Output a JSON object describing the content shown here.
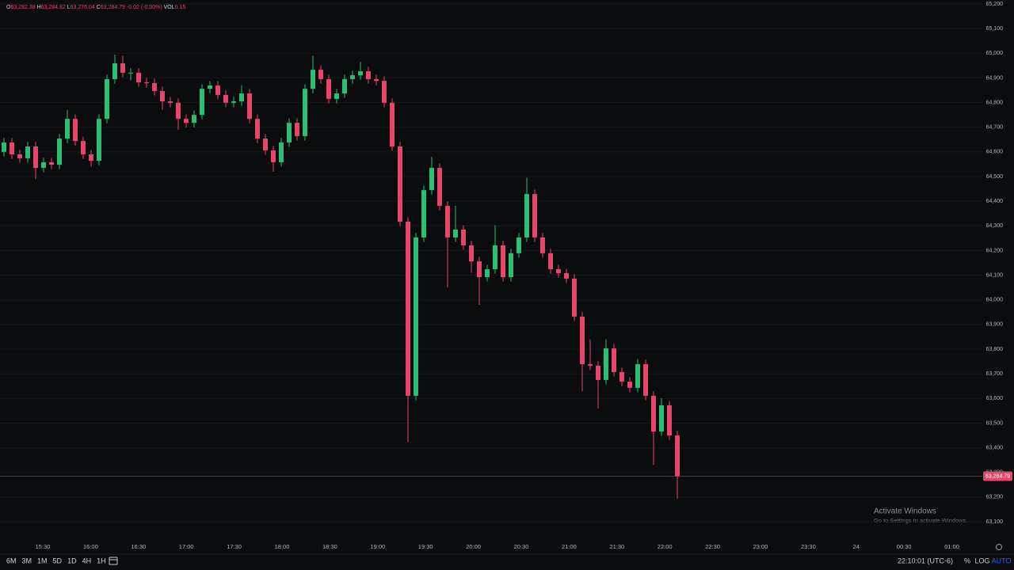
{
  "chart_data": {
    "type": "candlestick",
    "ohlc_legend": [
      {
        "label": "O",
        "value": "63,282.38"
      },
      {
        "label": "H",
        "value": "63,284.82"
      },
      {
        "label": "L",
        "value": "63,276.04"
      },
      {
        "label": "C",
        "value": "63,284.79"
      }
    ],
    "change": "-0.02 (-0.00%)",
    "volume": {
      "label": "VOL",
      "value": "0.15"
    },
    "up_color": "#2dbd74",
    "down_color": "#e6466b",
    "grid": true,
    "open": [
      64600,
      64638,
      64590,
      64574,
      64622,
      64535,
      64558,
      64548,
      64654,
      64734,
      64644,
      64590,
      64564,
      64734,
      64895,
      64959,
      64921,
      64921,
      64882,
      64879,
      64847,
      64805,
      64799,
      64734,
      64718,
      64750,
      64856,
      64869,
      64831,
      64799,
      64805,
      64837,
      64734,
      64654,
      64606,
      64558,
      64638,
      64718,
      64664,
      64856,
      64933,
      64895,
      64815,
      64837,
      64895,
      64911,
      64927,
      64895,
      64888,
      64799,
      64622,
      64317,
      63611,
      64253,
      64445,
      64535,
      64381,
      64253,
      64285,
      64221,
      64156,
      64092,
      64124,
      64221,
      64092,
      64189,
      64253,
      64429,
      64253,
      64189,
      64124,
      64108,
      64086,
      63932,
      63739,
      63733,
      63675,
      63803,
      63707,
      63668,
      63643,
      63739,
      63611,
      63466,
      63572,
      63450
    ],
    "high": [
      64656,
      64656,
      64608,
      64640,
      64640,
      64576,
      64576,
      64672,
      64770,
      64752,
      64662,
      64608,
      64752,
      64913,
      64995,
      64990,
      64939,
      64939,
      64900,
      64897,
      64865,
      64823,
      64817,
      64752,
      64768,
      64874,
      64887,
      64887,
      64849,
      64823,
      64870,
      64855,
      64752,
      64672,
      64624,
      64656,
      64736,
      64736,
      64874,
      64990,
      64951,
      64913,
      64855,
      64913,
      64929,
      64965,
      64945,
      64913,
      64906,
      64817,
      64640,
      64335,
      64271,
      64463,
      64580,
      64553,
      64399,
      64381,
      64303,
      64239,
      64174,
      64142,
      64303,
      64239,
      64207,
      64271,
      64495,
      64447,
      64271,
      64207,
      64142,
      64126,
      64104,
      63950,
      63840,
      63751,
      63840,
      63821,
      63725,
      63686,
      63760,
      63757,
      63629,
      63600,
      63590,
      63468
    ],
    "low": [
      64582,
      64572,
      64556,
      64556,
      64490,
      64517,
      64530,
      64530,
      64636,
      64626,
      64572,
      64540,
      64546,
      64716,
      64877,
      64903,
      64890,
      64864,
      64861,
      64829,
      64770,
      64781,
      64690,
      64700,
      64700,
      64732,
      64838,
      64813,
      64781,
      64781,
      64787,
      64716,
      64636,
      64588,
      64520,
      64540,
      64620,
      64646,
      64646,
      64838,
      64877,
      64797,
      64797,
      64819,
      64877,
      64893,
      64877,
      64870,
      64781,
      64604,
      64299,
      63424,
      63593,
      64235,
      64427,
      64363,
      64050,
      64235,
      64203,
      64110,
      63980,
      64074,
      64106,
      64074,
      64074,
      64171,
      64235,
      64235,
      64171,
      64106,
      64090,
      64068,
      63914,
      63630,
      63715,
      63560,
      63657,
      63689,
      63650,
      63625,
      63625,
      63593,
      63330,
      63448,
      63432,
      63193
    ],
    "close": [
      64638,
      64590,
      64574,
      64622,
      64535,
      64558,
      64548,
      64654,
      64734,
      64644,
      64590,
      64564,
      64734,
      64895,
      64959,
      64921,
      64921,
      64882,
      64879,
      64847,
      64805,
      64799,
      64734,
      64718,
      64750,
      64856,
      64869,
      64831,
      64799,
      64805,
      64837,
      64734,
      64654,
      64606,
      64558,
      64638,
      64718,
      64664,
      64856,
      64933,
      64895,
      64815,
      64837,
      64895,
      64911,
      64927,
      64895,
      64888,
      64799,
      64622,
      64317,
      63611,
      64253,
      64445,
      64535,
      64381,
      64253,
      64285,
      64221,
      64156,
      64092,
      64124,
      64221,
      64092,
      64189,
      64253,
      64429,
      64253,
      64189,
      64124,
      64108,
      64086,
      63932,
      63739,
      63733,
      63675,
      63803,
      63707,
      63668,
      63643,
      63739,
      63611,
      63466,
      63572,
      63450,
      63285
    ],
    "ylim": [
      63023,
      65216
    ],
    "yticks": [
      {
        "value": 63100,
        "label": "63,100"
      },
      {
        "value": 63200,
        "label": "63,200"
      },
      {
        "value": 63300,
        "label": "63,300"
      },
      {
        "value": 63400,
        "label": "63,400"
      },
      {
        "value": 63500,
        "label": "63,500"
      },
      {
        "value": 63600,
        "label": "63,600"
      },
      {
        "value": 63700,
        "label": "63,700"
      },
      {
        "value": 63800,
        "label": "63,800"
      },
      {
        "value": 63900,
        "label": "63,900"
      },
      {
        "value": 64000,
        "label": "64,000"
      },
      {
        "value": 64100,
        "label": "64,100"
      },
      {
        "value": 64200,
        "label": "64,200"
      },
      {
        "value": 64300,
        "label": "64,300"
      },
      {
        "value": 64400,
        "label": "64,400"
      },
      {
        "value": 64500,
        "label": "64,500"
      },
      {
        "value": 64600,
        "label": "64,600"
      },
      {
        "value": 64700,
        "label": "64,700"
      },
      {
        "value": 64800,
        "label": "64,800"
      },
      {
        "value": 64900,
        "label": "64,900"
      },
      {
        "value": 65000,
        "label": "65,000"
      },
      {
        "value": 65100,
        "label": "65,100"
      },
      {
        "value": 65200,
        "label": "65,200"
      }
    ],
    "xticks": [
      "15:30",
      "16:00",
      "16:30",
      "17:00",
      "17:30",
      "18:00",
      "18:30",
      "19:00",
      "19:30",
      "20:00",
      "20:30",
      "21:00",
      "21:30",
      "22:00",
      "22:30",
      "23:00",
      "23:30",
      "24",
      "00:30",
      "01:00"
    ],
    "last_price": {
      "value": 63284.79,
      "label": "63,284.79"
    }
  },
  "toolbar": {
    "ranges": [
      "6M",
      "3M",
      "1M",
      "5D",
      "1D",
      "4H",
      "1H"
    ],
    "clock": "22:10:01 (UTC-6)",
    "percent": "%",
    "log": "LOG",
    "auto": "AUTO"
  },
  "watermark": {
    "title": "Activate Windows",
    "subtitle": "Go to Settings to activate Windows."
  }
}
